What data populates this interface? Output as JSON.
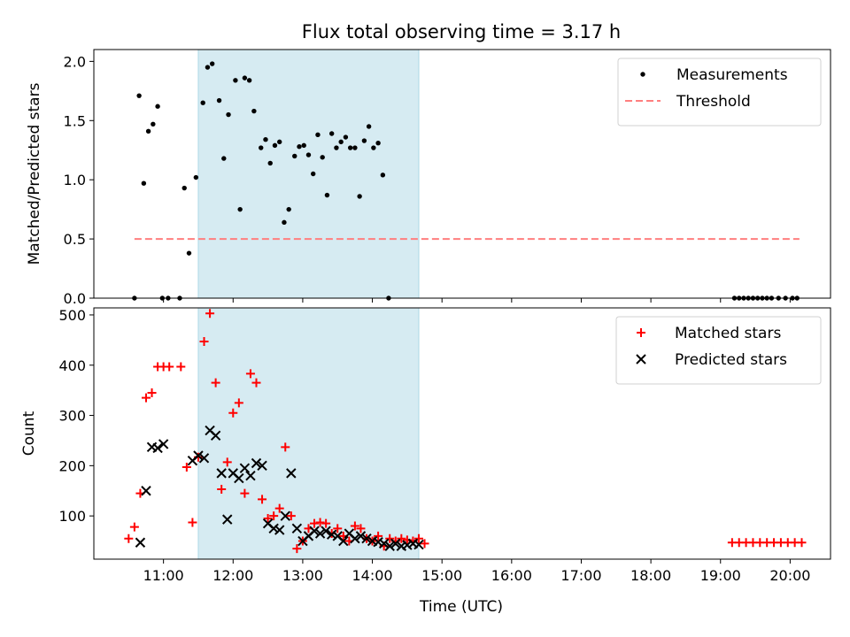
{
  "figure": {
    "title": "Flux total observing time = 3.17 h",
    "xlabel": "Time (UTC)"
  },
  "chart_data": [
    {
      "type": "scatter",
      "ylabel": "Matched/Predicted stars",
      "xlim_hours": [
        10.0,
        20.58
      ],
      "ylim": [
        0,
        2.1
      ],
      "yticks": [
        "0.0",
        "0.5",
        "1.0",
        "1.5",
        "2.0"
      ],
      "shaded_region": {
        "from": "11:30",
        "to": "14:40",
        "color": "#add8e6"
      },
      "legend": {
        "placement": "top-right",
        "entries": [
          "Measurements",
          "Threshold"
        ]
      },
      "threshold": {
        "name": "Threshold",
        "value": 0.5,
        "x_from": "10:35",
        "x_to": "20:08",
        "color": "#ff7f7f"
      },
      "series": [
        {
          "name": "Measurements",
          "marker": "dot",
          "color": "#000000",
          "points": [
            [
              "10:35",
              0.0
            ],
            [
              "10:39",
              1.71
            ],
            [
              "10:43",
              0.97
            ],
            [
              "10:47",
              1.41
            ],
            [
              "10:51",
              1.47
            ],
            [
              "10:55",
              1.62
            ],
            [
              "10:59",
              0.0
            ],
            [
              "11:04",
              0.0
            ],
            [
              "11:14",
              0.0
            ],
            [
              "11:18",
              0.93
            ],
            [
              "11:22",
              0.38
            ],
            [
              "11:28",
              1.02
            ],
            [
              "11:34",
              1.65
            ],
            [
              "11:38",
              1.95
            ],
            [
              "11:42",
              1.98
            ],
            [
              "11:48",
              1.67
            ],
            [
              "11:52",
              1.18
            ],
            [
              "11:56",
              1.55
            ],
            [
              "12:02",
              1.84
            ],
            [
              "12:06",
              0.75
            ],
            [
              "12:10",
              1.86
            ],
            [
              "12:14",
              1.84
            ],
            [
              "12:18",
              1.58
            ],
            [
              "12:24",
              1.27
            ],
            [
              "12:28",
              1.34
            ],
            [
              "12:32",
              1.14
            ],
            [
              "12:36",
              1.29
            ],
            [
              "12:40",
              1.32
            ],
            [
              "12:44",
              0.64
            ],
            [
              "12:48",
              0.75
            ],
            [
              "12:53",
              1.2
            ],
            [
              "12:57",
              1.28
            ],
            [
              "13:01",
              1.29
            ],
            [
              "13:05",
              1.21
            ],
            [
              "13:09",
              1.05
            ],
            [
              "13:13",
              1.38
            ],
            [
              "13:17",
              1.19
            ],
            [
              "13:21",
              0.87
            ],
            [
              "13:25",
              1.39
            ],
            [
              "13:29",
              1.27
            ],
            [
              "13:33",
              1.32
            ],
            [
              "13:37",
              1.36
            ],
            [
              "13:41",
              1.27
            ],
            [
              "13:45",
              1.27
            ],
            [
              "13:49",
              0.86
            ],
            [
              "13:53",
              1.33
            ],
            [
              "13:57",
              1.45
            ],
            [
              "14:01",
              1.27
            ],
            [
              "14:05",
              1.31
            ],
            [
              "14:09",
              1.04
            ],
            [
              "14:14",
              0.0
            ],
            [
              "19:12",
              0.0
            ],
            [
              "19:16",
              0.0
            ],
            [
              "19:20",
              0.0
            ],
            [
              "19:24",
              0.0
            ],
            [
              "19:28",
              0.0
            ],
            [
              "19:32",
              0.0
            ],
            [
              "19:36",
              0.0
            ],
            [
              "19:40",
              0.0
            ],
            [
              "19:44",
              0.0
            ],
            [
              "19:50",
              0.0
            ],
            [
              "19:56",
              0.0
            ],
            [
              "20:02",
              0.0
            ],
            [
              "20:06",
              0.0
            ]
          ]
        }
      ]
    },
    {
      "type": "scatter",
      "ylabel": "Count",
      "xlim_hours": [
        10.0,
        20.58
      ],
      "ylim": [
        14,
        514
      ],
      "yticks": [
        "100",
        "200",
        "300",
        "400",
        "500"
      ],
      "xticks": [
        "11:00",
        "12:00",
        "13:00",
        "14:00",
        "15:00",
        "16:00",
        "17:00",
        "18:00",
        "19:00",
        "20:00"
      ],
      "shaded_region": {
        "from": "11:30",
        "to": "14:40",
        "color": "#add8e6"
      },
      "legend": {
        "placement": "top-right",
        "entries": [
          "Matched stars",
          "Predicted stars"
        ]
      },
      "series": [
        {
          "name": "Matched stars",
          "marker": "plus",
          "color": "#ff0000",
          "points": [
            [
              "10:30",
              55
            ],
            [
              "10:35",
              78
            ],
            [
              "10:40",
              145
            ],
            [
              "10:45",
              335
            ],
            [
              "10:50",
              345
            ],
            [
              "10:55",
              397
            ],
            [
              "11:00",
              397
            ],
            [
              "11:05",
              397
            ],
            [
              "11:15",
              397
            ],
            [
              "11:20",
              197
            ],
            [
              "11:25",
              87
            ],
            [
              "11:30",
              217
            ],
            [
              "11:35",
              447
            ],
            [
              "11:40",
              503
            ],
            [
              "11:45",
              365
            ],
            [
              "11:50",
              153
            ],
            [
              "11:55",
              207
            ],
            [
              "12:00",
              305
            ],
            [
              "12:05",
              325
            ],
            [
              "12:10",
              145
            ],
            [
              "12:15",
              383
            ],
            [
              "12:20",
              365
            ],
            [
              "12:25",
              133
            ],
            [
              "12:30",
              95
            ],
            [
              "12:35",
              100
            ],
            [
              "12:40",
              115
            ],
            [
              "12:45",
              237
            ],
            [
              "12:50",
              100
            ],
            [
              "12:55",
              35
            ],
            [
              "13:00",
              50
            ],
            [
              "13:05",
              75
            ],
            [
              "13:10",
              85
            ],
            [
              "13:15",
              87
            ],
            [
              "13:20",
              85
            ],
            [
              "13:25",
              65
            ],
            [
              "13:30",
              75
            ],
            [
              "13:35",
              60
            ],
            [
              "13:40",
              50
            ],
            [
              "13:45",
              80
            ],
            [
              "13:50",
              75
            ],
            [
              "13:55",
              55
            ],
            [
              "14:00",
              50
            ],
            [
              "14:05",
              60
            ],
            [
              "14:10",
              40
            ],
            [
              "14:15",
              55
            ],
            [
              "14:20",
              50
            ],
            [
              "14:25",
              55
            ],
            [
              "14:30",
              52
            ],
            [
              "14:35",
              50
            ],
            [
              "14:40",
              55
            ],
            [
              "14:45",
              45
            ],
            [
              "19:10",
              47
            ],
            [
              "19:16",
              47
            ],
            [
              "19:22",
              47
            ],
            [
              "19:28",
              47
            ],
            [
              "19:34",
              47
            ],
            [
              "19:40",
              47
            ],
            [
              "19:46",
              47
            ],
            [
              "19:52",
              47
            ],
            [
              "19:58",
              47
            ],
            [
              "20:04",
              47
            ],
            [
              "20:10",
              47
            ]
          ]
        },
        {
          "name": "Predicted stars",
          "marker": "x",
          "color": "#000000",
          "points": [
            [
              "10:40",
              47
            ],
            [
              "10:45",
              150
            ],
            [
              "10:50",
              237
            ],
            [
              "10:55",
              235
            ],
            [
              "11:00",
              243
            ],
            [
              "11:25",
              210
            ],
            [
              "11:30",
              220
            ],
            [
              "11:35",
              215
            ],
            [
              "11:40",
              270
            ],
            [
              "11:45",
              260
            ],
            [
              "11:50",
              185
            ],
            [
              "11:55",
              93
            ],
            [
              "12:00",
              185
            ],
            [
              "12:05",
              175
            ],
            [
              "12:10",
              195
            ],
            [
              "12:15",
              180
            ],
            [
              "12:20",
              205
            ],
            [
              "12:25",
              200
            ],
            [
              "12:30",
              85
            ],
            [
              "12:35",
              75
            ],
            [
              "12:40",
              72
            ],
            [
              "12:45",
              100
            ],
            [
              "12:50",
              185
            ],
            [
              "12:55",
              75
            ],
            [
              "13:00",
              50
            ],
            [
              "13:05",
              60
            ],
            [
              "13:10",
              70
            ],
            [
              "13:15",
              65
            ],
            [
              "13:20",
              70
            ],
            [
              "13:25",
              63
            ],
            [
              "13:30",
              60
            ],
            [
              "13:35",
              50
            ],
            [
              "13:40",
              65
            ],
            [
              "13:45",
              55
            ],
            [
              "13:50",
              60
            ],
            [
              "13:55",
              55
            ],
            [
              "14:00",
              50
            ],
            [
              "14:05",
              48
            ],
            [
              "14:10",
              45
            ],
            [
              "14:15",
              40
            ],
            [
              "14:20",
              45
            ],
            [
              "14:25",
              40
            ],
            [
              "14:30",
              42
            ],
            [
              "14:35",
              45
            ],
            [
              "14:40",
              43
            ]
          ]
        }
      ]
    }
  ]
}
